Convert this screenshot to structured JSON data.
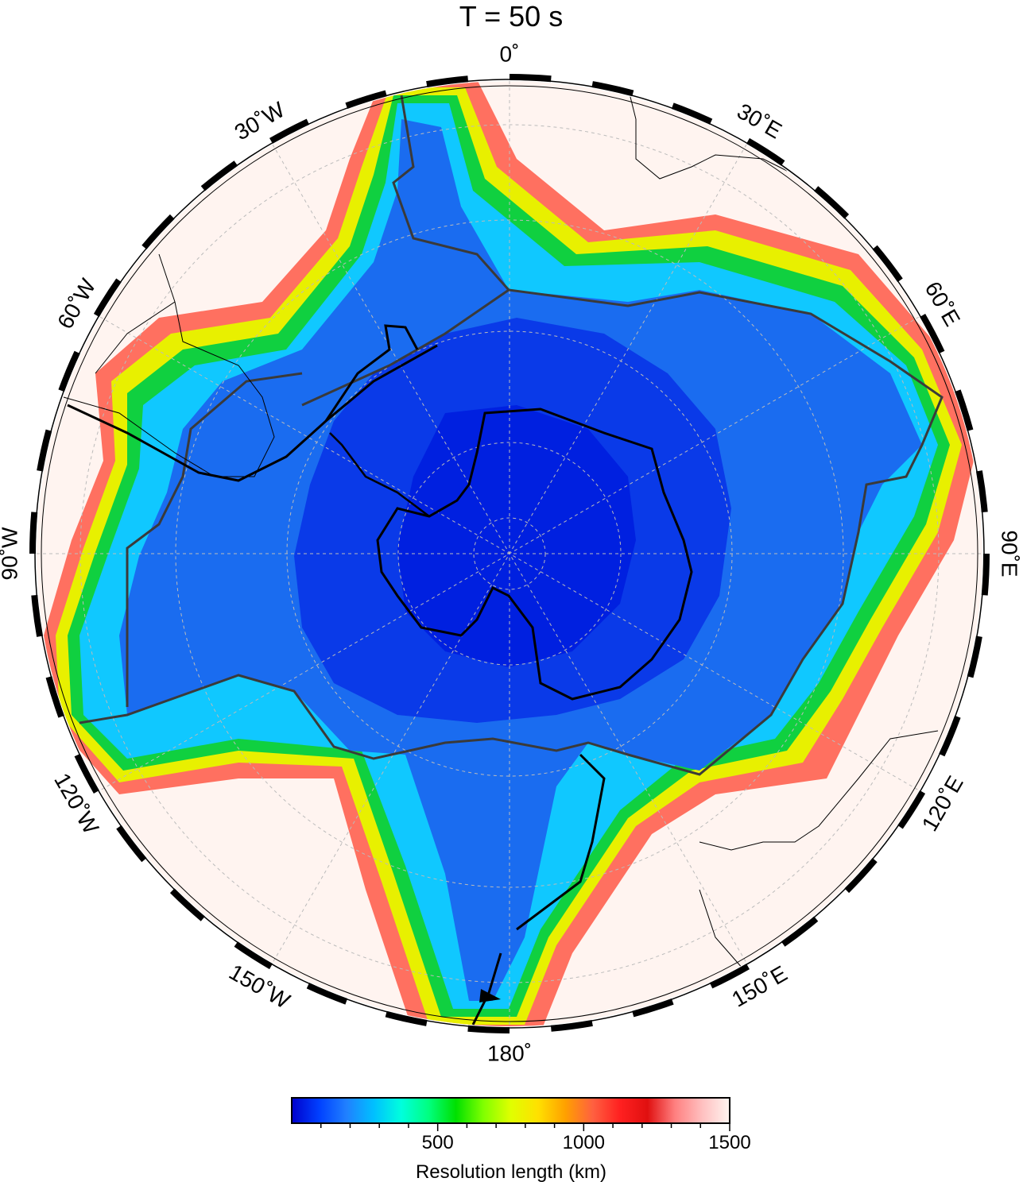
{
  "title": "T = 50 s",
  "longitude_labels": [
    {
      "text": "0˚",
      "lon": 0
    },
    {
      "text": "30˚E",
      "lon": 30
    },
    {
      "text": "60˚E",
      "lon": 60
    },
    {
      "text": "90˚E",
      "lon": 90
    },
    {
      "text": "120˚E",
      "lon": 120
    },
    {
      "text": "150˚E",
      "lon": 150
    },
    {
      "text": "180˚",
      "lon": 180
    },
    {
      "text": "150˚W",
      "lon": -150
    },
    {
      "text": "120˚W",
      "lon": -120
    },
    {
      "text": "90˚W",
      "lon": -90
    },
    {
      "text": "60˚W",
      "lon": -60
    },
    {
      "text": "30˚W",
      "lon": -30
    }
  ],
  "colorbar": {
    "label": "Resolution length (km)",
    "min": 0,
    "max": 1500,
    "ticks": [
      {
        "value": 500,
        "text": "500"
      },
      {
        "value": 1000,
        "text": "1000"
      },
      {
        "value": 1500,
        "text": "1500"
      }
    ],
    "stops": [
      "#0000cc",
      "#0040ff",
      "#2080ff",
      "#00c0ff",
      "#00ffdd",
      "#00ff80",
      "#00e000",
      "#80ff00",
      "#e0ff00",
      "#ffe000",
      "#ffa000",
      "#ff6040",
      "#ff2020",
      "#e01010",
      "#ff8080",
      "#ffc0c0",
      "#fff4f0"
    ]
  },
  "colors": {
    "low_resolution": "#fff4f0",
    "ocean_blue": "#1a6cf0",
    "deep_blue": "#0a2ee8",
    "plate_boundary": "#3a3a3a",
    "coastline": "#000000"
  }
}
